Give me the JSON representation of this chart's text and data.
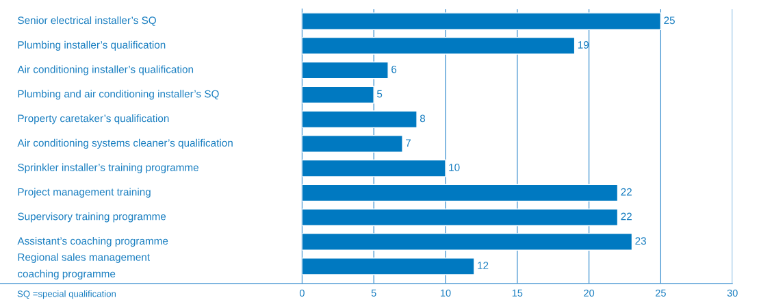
{
  "chart_data": {
    "type": "bar",
    "orientation": "horizontal",
    "categories": [
      "Senior electrical installer’s SQ",
      "Plumbing installer’s qualification",
      "Air conditioning installer’s qualification",
      "Plumbing and air conditioning installer’s SQ",
      "Property caretaker’s qualification",
      "Air conditioning systems cleaner’s qualification",
      "Sprinkler installer’s training programme",
      "Project management training",
      "Supervisory training programme",
      "Assistant’s coaching programme",
      "Regional sales management\ncoaching programme"
    ],
    "values": [
      25,
      19,
      6,
      5,
      8,
      7,
      10,
      22,
      22,
      23,
      12
    ],
    "color": "#0079c1",
    "xlim": [
      0,
      30
    ],
    "xticks": [
      0,
      5,
      10,
      15,
      20,
      25,
      30
    ],
    "grid": "x",
    "data_labels": true,
    "legend": false,
    "annotations": [
      "SQ =special qualification"
    ]
  }
}
